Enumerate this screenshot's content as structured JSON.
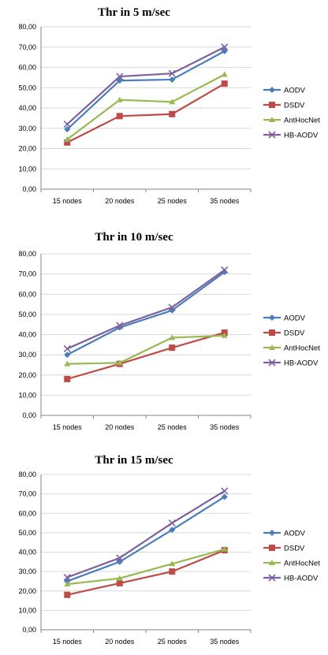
{
  "colors": {
    "AODV": "#4a7ebb",
    "DSDV": "#be4b48",
    "AntHocNet": "#98b954",
    "HB-AODV": "#7d60a0",
    "grid": "#d9d9d9",
    "axis": "#868686"
  },
  "chart_data": [
    {
      "type": "line",
      "title": "Thr in 5 m/sec",
      "categories": [
        "15 nodes",
        "20 nodes",
        "25 nodes",
        "35 nodes"
      ],
      "ylim": [
        0,
        80
      ],
      "yticks": [
        "0,00",
        "10,00",
        "20,00",
        "30,00",
        "40,00",
        "50,00",
        "60,00",
        "70,00",
        "80,00"
      ],
      "grid": true,
      "legend": "right",
      "series": [
        {
          "name": "AODV",
          "marker": "diamond",
          "values": [
            29.5,
            53.5,
            54,
            68
          ]
        },
        {
          "name": "DSDV",
          "marker": "square",
          "values": [
            23,
            36,
            37,
            52
          ]
        },
        {
          "name": "AntHocNet",
          "marker": "triangle",
          "values": [
            24.5,
            44,
            43,
            56.5
          ]
        },
        {
          "name": "HB-AODV",
          "marker": "x",
          "values": [
            32,
            55.5,
            57,
            70
          ]
        }
      ]
    },
    {
      "type": "line",
      "title": "Thr in 10 m/sec",
      "categories": [
        "15 nodes",
        "20 nodes",
        "25 nodes",
        "35 nodes"
      ],
      "ylim": [
        0,
        80
      ],
      "yticks": [
        "0,00",
        "10,00",
        "20,00",
        "30,00",
        "40,00",
        "50,00",
        "60,00",
        "70,00",
        "80,00"
      ],
      "grid": true,
      "legend": "right",
      "series": [
        {
          "name": "AODV",
          "marker": "diamond",
          "values": [
            30,
            43.5,
            52,
            71
          ]
        },
        {
          "name": "DSDV",
          "marker": "square",
          "values": [
            18,
            25.5,
            33.5,
            41
          ]
        },
        {
          "name": "AntHocNet",
          "marker": "triangle",
          "values": [
            25.5,
            26,
            38.5,
            39.5
          ]
        },
        {
          "name": "HB-AODV",
          "marker": "x",
          "values": [
            33,
            44.5,
            53.5,
            72
          ]
        }
      ]
    },
    {
      "type": "line",
      "title": "Thr in 15 m/sec",
      "categories": [
        "15 nodes",
        "20 nodes",
        "25 nodes",
        "35 nodes"
      ],
      "ylim": [
        0,
        80
      ],
      "yticks": [
        "0,00",
        "10,00",
        "20,00",
        "30,00",
        "40,00",
        "50,00",
        "60,00",
        "70,00",
        "80,00"
      ],
      "grid": true,
      "legend": "right",
      "series": [
        {
          "name": "AODV",
          "marker": "diamond",
          "values": [
            25,
            35,
            51.5,
            68.5
          ]
        },
        {
          "name": "DSDV",
          "marker": "square",
          "values": [
            18,
            24,
            30,
            41
          ]
        },
        {
          "name": "AntHocNet",
          "marker": "triangle",
          "values": [
            23.5,
            26.5,
            34,
            41.5
          ]
        },
        {
          "name": "HB-AODV",
          "marker": "x",
          "values": [
            27,
            37,
            55,
            71.5
          ]
        }
      ]
    }
  ]
}
